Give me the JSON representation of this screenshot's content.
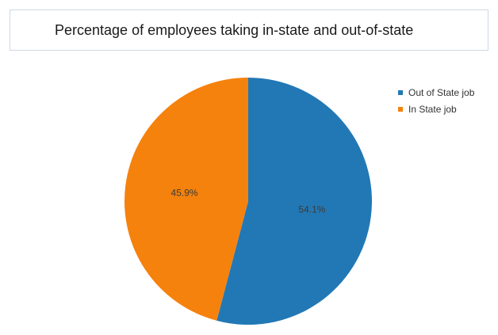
{
  "chart_data": {
    "type": "pie",
    "title": "Percentage of employees taking in-state and out-of-state",
    "legend_position": "top-right",
    "slices": [
      {
        "label": "Out of State job",
        "value": 54.1,
        "display": "54.1%",
        "color": "#2278b5"
      },
      {
        "label": "In State job",
        "value": 45.9,
        "display": "45.9%",
        "color": "#f5820d"
      }
    ]
  }
}
